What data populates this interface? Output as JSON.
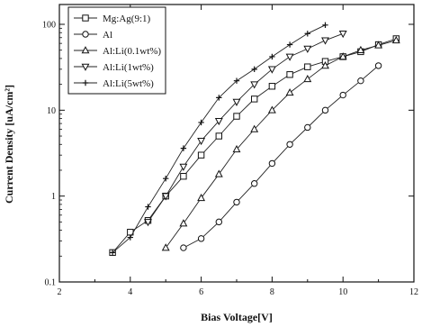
{
  "chart_data": {
    "type": "line",
    "xlabel": "Bias Voltage[V]",
    "ylabel": "Current Density [uA/cm²]",
    "xlim": [
      2,
      12
    ],
    "ylim": [
      0.1,
      150
    ],
    "yscale": "log",
    "xticks": [
      2,
      4,
      6,
      8,
      10,
      12
    ],
    "yticks": [
      0.1,
      1,
      10,
      100
    ],
    "ytick_labels": [
      "0.1",
      "1",
      "10",
      "100"
    ],
    "legend_position": "top-left",
    "grid": false,
    "series": [
      {
        "name": "Mg:Ag(9:1)",
        "marker": "square",
        "x": [
          3.5,
          4.0,
          4.5,
          5.0,
          5.5,
          6.0,
          6.5,
          7.0,
          7.5,
          8.0,
          8.5,
          9.0,
          9.5,
          10.0,
          10.5,
          11.0,
          11.5
        ],
        "y": [
          0.22,
          0.38,
          0.52,
          1.0,
          1.7,
          3.0,
          5.0,
          8.5,
          13.5,
          19,
          26,
          32,
          37,
          42,
          48,
          58,
          68
        ]
      },
      {
        "name": "Al",
        "marker": "circle",
        "x": [
          5.5,
          6.0,
          6.5,
          7.0,
          7.5,
          8.0,
          8.5,
          9.0,
          9.5,
          10.0,
          10.5,
          11.0
        ],
        "y": [
          0.25,
          0.32,
          0.5,
          0.85,
          1.4,
          2.4,
          4.0,
          6.3,
          10,
          15,
          22,
          33
        ]
      },
      {
        "name": "Al:Li(0.1wt%)",
        "marker": "triangle-up",
        "x": [
          5.0,
          5.5,
          6.0,
          6.5,
          7.0,
          7.5,
          8.0,
          8.5,
          9.0,
          9.5,
          10.0,
          10.5,
          11.0,
          11.5
        ],
        "y": [
          0.25,
          0.48,
          0.95,
          1.8,
          3.5,
          6.0,
          10,
          16,
          23,
          33,
          42,
          50,
          57,
          65
        ]
      },
      {
        "name": "Al:Li(1wt%)",
        "marker": "triangle-down",
        "x": [
          4.5,
          5.0,
          5.5,
          6.0,
          6.5,
          7.0,
          7.5,
          8.0,
          8.5,
          9.0,
          9.5,
          10.0
        ],
        "y": [
          0.5,
          1.0,
          2.2,
          4.4,
          7.5,
          12.5,
          20,
          30,
          42,
          52,
          65,
          78
        ]
      },
      {
        "name": "Al:Li(5wt%)",
        "marker": "plus",
        "x": [
          3.5,
          4.0,
          4.5,
          5.0,
          5.5,
          6.0,
          6.5,
          7.0,
          7.5,
          8.0,
          8.5,
          9.0,
          9.5
        ],
        "y": [
          0.22,
          0.33,
          0.75,
          1.6,
          3.6,
          7.2,
          14,
          22,
          30,
          42,
          58,
          78,
          98
        ]
      }
    ]
  }
}
